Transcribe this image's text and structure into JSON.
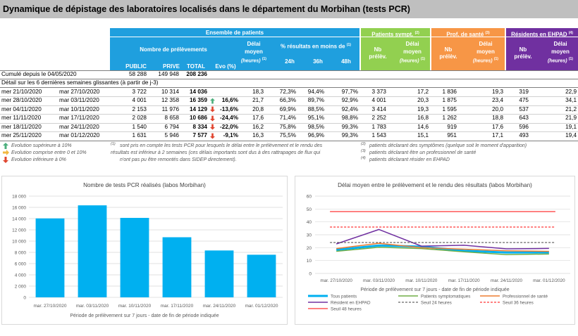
{
  "title": "Dynamique de dépistage des laboratoires localisés dans le département du Morbihan (tests PCR)",
  "headers": {
    "ensemble": "Ensemble de patients",
    "nb_prelev": "Nombre de prélèvements",
    "public": "PUBLIC",
    "prive": "PRIVE",
    "total": "TOTAL",
    "evo": "Evo (%)",
    "delai_l1": "Délai",
    "delai_l2": "moyen",
    "heures": "(heures)",
    "sup1": "(1)",
    "pct": "% résultats en moins de",
    "h24": "24h",
    "h36": "36h",
    "h48": "48h",
    "sympt": "Patients sympt.",
    "sup2": "(2)",
    "prof": "Prof. de santé",
    "sup3": "(3)",
    "ehpad": "Résidents en EHPAD",
    "sup4": "(4)",
    "nb": "Nb",
    "prelev": "prélèv."
  },
  "cumul": {
    "label": "Cumulé depuis le 04/05/2020",
    "public": "58 288",
    "prive": "149 948",
    "total": "208 236"
  },
  "detail_label": "Détail sur les 6 dernières semaines glissantes (à partir de j-3)",
  "rows": [
    {
      "d1": "mer 21/10/2020",
      "d2": "mar 27/10/2020",
      "pub": "3 722",
      "priv": "10 314",
      "tot": "14 036",
      "evo": "",
      "arrow": "",
      "del": "18,3",
      "p24": "72,3%",
      "p36": "94,4%",
      "p48": "97,7%",
      "snb": "3 373",
      "sdel": "17,2",
      "pnb": "1 836",
      "pdel": "19,3",
      "enb": "319",
      "edel": "22,9"
    },
    {
      "d1": "mer 28/10/2020",
      "d2": "mar 03/11/2020",
      "pub": "4 001",
      "priv": "12 358",
      "tot": "16 359",
      "evo": "16,6%",
      "arrow": "up",
      "del": "21,7",
      "p24": "66,3%",
      "p36": "89,7%",
      "p48": "92,9%",
      "snb": "4 001",
      "sdel": "20,3",
      "pnb": "1 875",
      "pdel": "23,4",
      "enb": "475",
      "edel": "34,1"
    },
    {
      "d1": "mer 04/11/2020",
      "d2": "mar 10/11/2020",
      "pub": "2 153",
      "priv": "11 976",
      "tot": "14 129",
      "evo": "-13,6%",
      "arrow": "down",
      "del": "20,8",
      "p24": "69,9%",
      "p36": "88,5%",
      "p48": "92,4%",
      "snb": "3 414",
      "sdel": "19,3",
      "pnb": "1 595",
      "pdel": "20,0",
      "enb": "537",
      "edel": "21,2"
    },
    {
      "d1": "mer 11/11/2020",
      "d2": "mar 17/11/2020",
      "pub": "2 028",
      "priv": "8 658",
      "tot": "10 686",
      "evo": "-24,4%",
      "arrow": "down",
      "del": "17,6",
      "p24": "71,4%",
      "p36": "95,1%",
      "p48": "98,8%",
      "snb": "2 252",
      "sdel": "16,8",
      "pnb": "1 262",
      "pdel": "18,8",
      "enb": "643",
      "edel": "21,9"
    },
    {
      "d1": "mer 18/11/2020",
      "d2": "mar 24/11/2020",
      "pub": "1 540",
      "priv": "6 794",
      "tot": "8 334",
      "evo": "-22,0%",
      "arrow": "down",
      "del": "16,2",
      "p24": "75,8%",
      "p36": "98,5%",
      "p48": "99,3%",
      "snb": "1 783",
      "sdel": "14,6",
      "pnb": "919",
      "pdel": "17,6",
      "enb": "596",
      "edel": "19,1"
    },
    {
      "d1": "mer 25/11/2020",
      "d2": "mar 01/12/2020",
      "pub": "1 631",
      "priv": "5 946",
      "tot": "7 577",
      "evo": "-9,1%",
      "arrow": "down",
      "del": "16,3",
      "p24": "75,5%",
      "p36": "96,9%",
      "p48": "99,3%",
      "snb": "1 543",
      "sdel": "15,1",
      "pnb": "951",
      "pdel": "17,1",
      "enb": "493",
      "edel": "19,4"
    }
  ],
  "legend": {
    "up": "Evolution supérieure à 10%",
    "mid": "Evolution comprise entre 0 et 10%",
    "down": "Evolution inférieure à 0%",
    "n1a": "sont pris en compte les tests PCR pour lesquels le délai entre le prélèvement et le rendu des",
    "n1b": "résultats est inférieur à 2 semaines (ces délais importants sont dus à des rattrapages de flux qui",
    "n1c": "n'ont pas pu être remontés dans SIDEP directement).",
    "n2": "patients déclarant des symptômes (quelque soit le moment d'apparition)",
    "n3": "patients déclarant être un professionnel de santé",
    "n4": "patients déclarant résider en EHPAD",
    "s1": "(1)",
    "s2": "(2)",
    "s3": "(3)",
    "s4": "(4)"
  },
  "colors": {
    "blue": "#1f9fde",
    "green": "#92d050",
    "orange": "#f79646",
    "purple": "#7030a0",
    "bar": "#00b0f0"
  },
  "chart_data": [
    {
      "type": "bar",
      "title": "Nombre de tests PCR réalisés (labos Morbihan)",
      "categories": [
        "mar. 27/10/2020",
        "mar. 03/11/2020",
        "mar. 10/11/2020",
        "mar. 17/11/2020",
        "mar. 24/11/2020",
        "mar. 01/12/2020"
      ],
      "values": [
        14036,
        16359,
        14129,
        10686,
        8334,
        7577
      ],
      "ylim": [
        0,
        18000
      ],
      "yticks": [
        "0",
        "2 000",
        "4 000",
        "6 000",
        "8 000",
        "10 000",
        "12 000",
        "14 000",
        "16 000",
        "18 000"
      ],
      "xlabel": "Période de prélèvement sur 7 jours - date de fin de période indiquée",
      "grid": true
    },
    {
      "type": "line",
      "title": "Délai moyen entre le prélèvement et le rendu des résultats (labos Morbihan)",
      "categories": [
        "mar. 27/10/2020",
        "mar. 03/11/2020",
        "mar. 10/11/2020",
        "mar. 17/11/2020",
        "mar. 24/11/2020",
        "mar. 01/12/2020"
      ],
      "ylim": [
        0,
        60
      ],
      "yticks": [
        "0",
        "10",
        "20",
        "30",
        "40",
        "50",
        "60"
      ],
      "xlabel": "Période de prélèvement sur 7 jours - date de fin de période indiquée",
      "series": [
        {
          "name": "Tous patients",
          "values": [
            18.3,
            21.7,
            20.8,
            17.6,
            16.2,
            16.3
          ],
          "color": "#00b0f0",
          "width": 3
        },
        {
          "name": "Patients symptomatiques",
          "values": [
            17.2,
            20.3,
            19.3,
            16.8,
            14.6,
            15.1
          ],
          "color": "#70ad47",
          "width": 1.5
        },
        {
          "name": "Professionnel de santé",
          "values": [
            19.3,
            23.4,
            20.0,
            18.8,
            17.6,
            17.1
          ],
          "color": "#ed7d31",
          "width": 1.5
        },
        {
          "name": "Résident en EHPAD",
          "values": [
            22.9,
            34.1,
            21.2,
            21.9,
            19.1,
            19.4
          ],
          "color": "#7030a0",
          "width": 1.5
        },
        {
          "name": "Seuil 24 heures",
          "values": [
            24,
            24,
            24,
            24,
            24,
            24
          ],
          "color": "#404040",
          "width": 1,
          "dash": "3,2"
        },
        {
          "name": "Seuil 36 heures",
          "values": [
            36,
            36,
            36,
            36,
            36,
            36
          ],
          "color": "#ff0000",
          "width": 1,
          "dash": "3,2"
        },
        {
          "name": "Seuil 48 heures",
          "values": [
            48,
            48,
            48,
            48,
            48,
            48
          ],
          "color": "#ff0000",
          "width": 1
        }
      ]
    }
  ]
}
